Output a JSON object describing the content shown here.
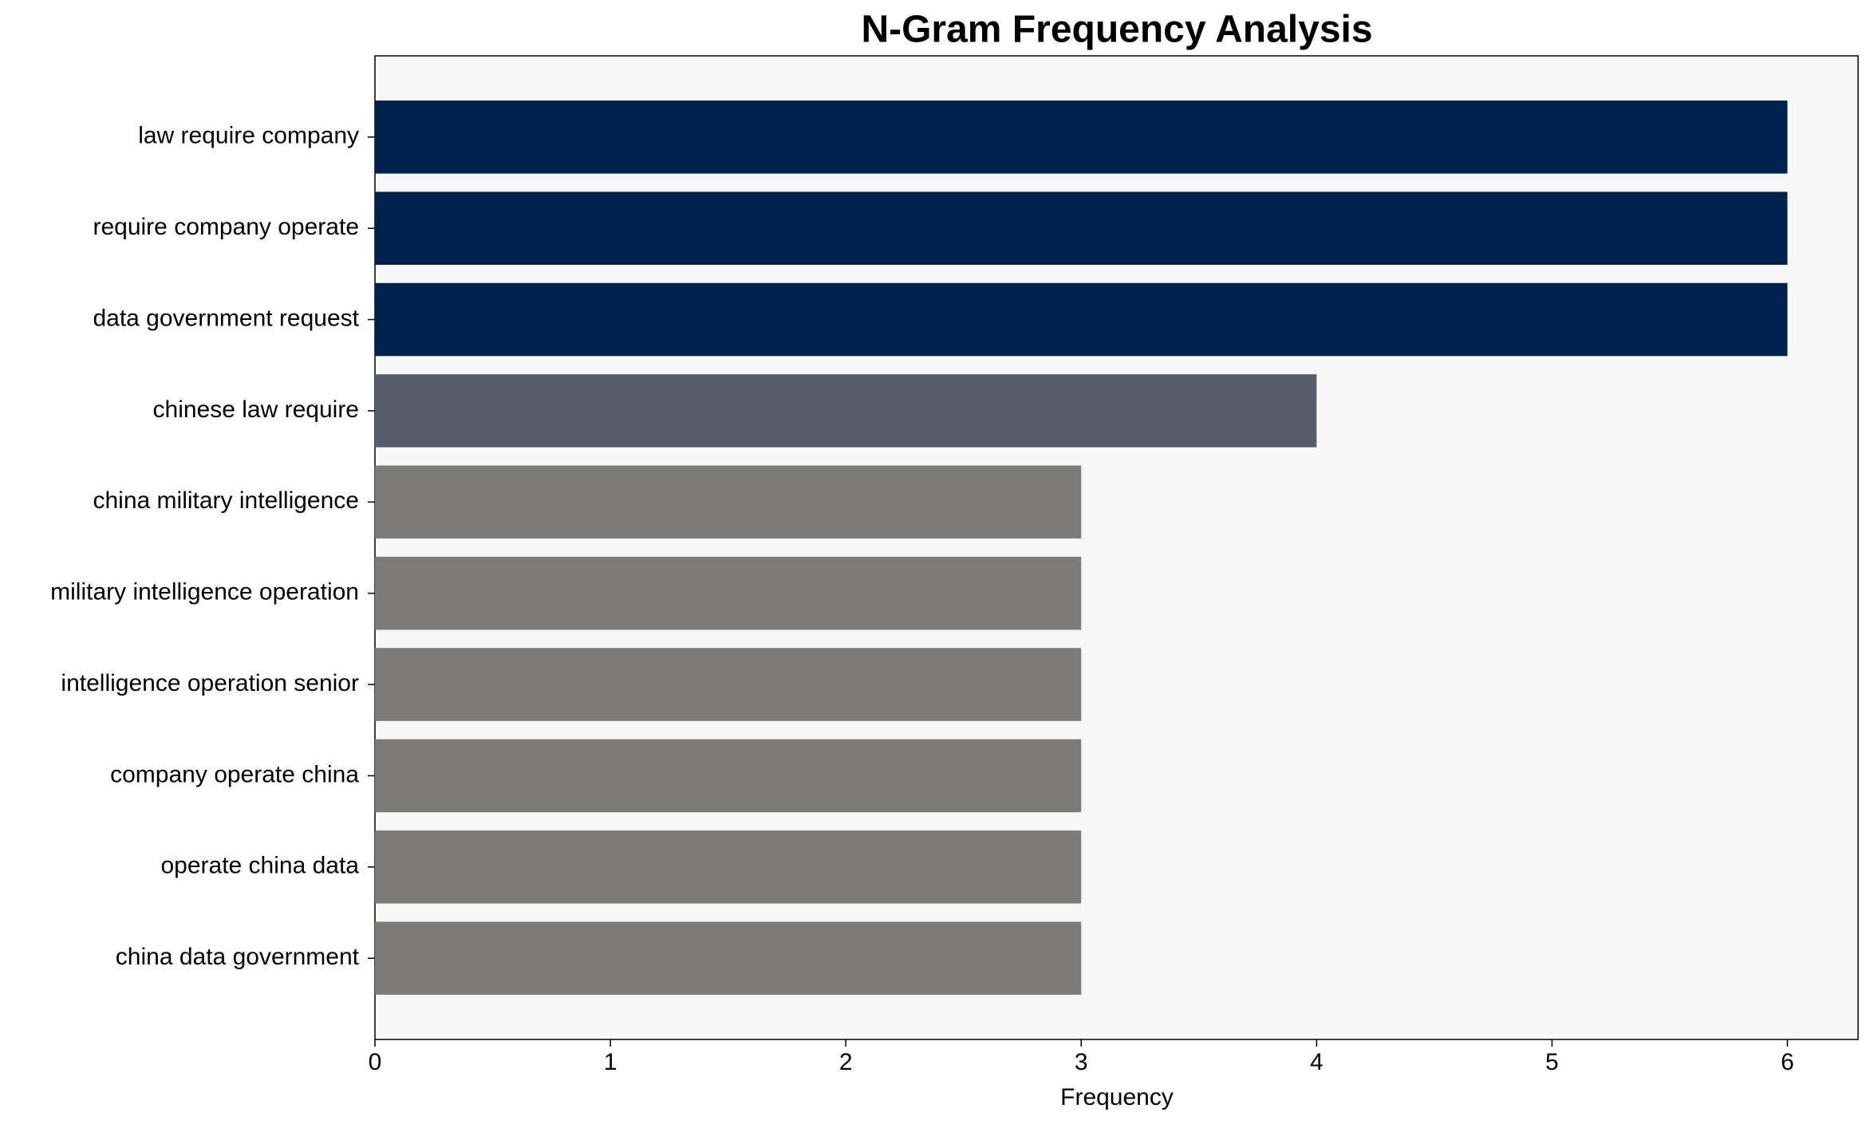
{
  "chart_data": {
    "type": "bar",
    "orientation": "horizontal",
    "title": "N-Gram Frequency Analysis",
    "x_label": "Frequency",
    "categories": [
      "law require company",
      "require company operate",
      "data government request",
      "chinese law require",
      "china military intelligence",
      "military intelligence operation",
      "intelligence operation senior",
      "company operate china",
      "operate china data",
      "china data government"
    ],
    "values": [
      6,
      6,
      6,
      4,
      3,
      3,
      3,
      3,
      3,
      3
    ],
    "colors": [
      "#00224e",
      "#00224e",
      "#00224e",
      "#575d6d",
      "#7c7b78",
      "#7c7b78",
      "#7c7b78",
      "#7c7b78",
      "#7c7b78",
      "#7c7b78"
    ],
    "xlim": [
      0,
      6.3
    ],
    "xticks": [
      0,
      1,
      2,
      3,
      4,
      5,
      6
    ],
    "grid": false
  }
}
